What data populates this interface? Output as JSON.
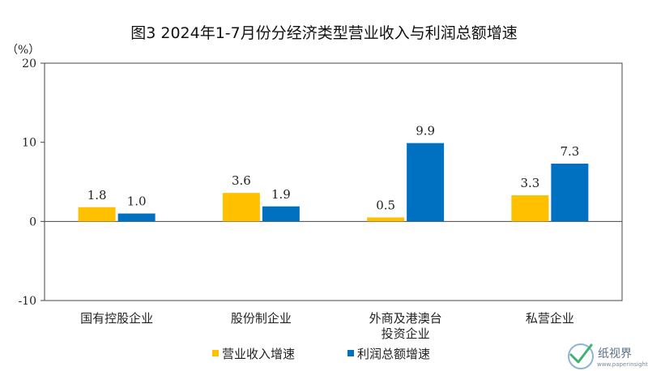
{
  "chart_data": {
    "type": "bar",
    "title": "图3 2024年1-7月份分经济类型营业收入与利润总额增速",
    "unit_label": "（%）",
    "categories": [
      [
        "国有控股企业"
      ],
      [
        "股份制企业"
      ],
      [
        "外商及港澳台",
        "投资企业"
      ],
      [
        "私营企业"
      ]
    ],
    "series": [
      {
        "name": "营业收入增速",
        "color": "#FFC000",
        "values": [
          1.8,
          3.6,
          0.5,
          3.3
        ]
      },
      {
        "name": "利润总额增速",
        "color": "#0070C0",
        "values": [
          1.0,
          1.9,
          9.9,
          7.3
        ]
      }
    ],
    "ylim": [
      -10,
      20
    ],
    "yticks": [
      -10,
      0,
      10,
      20
    ],
    "grid": false,
    "legend_position": "bottom-center"
  },
  "watermark": {
    "name": "纸视界",
    "url": "www.paperinsight.net"
  }
}
